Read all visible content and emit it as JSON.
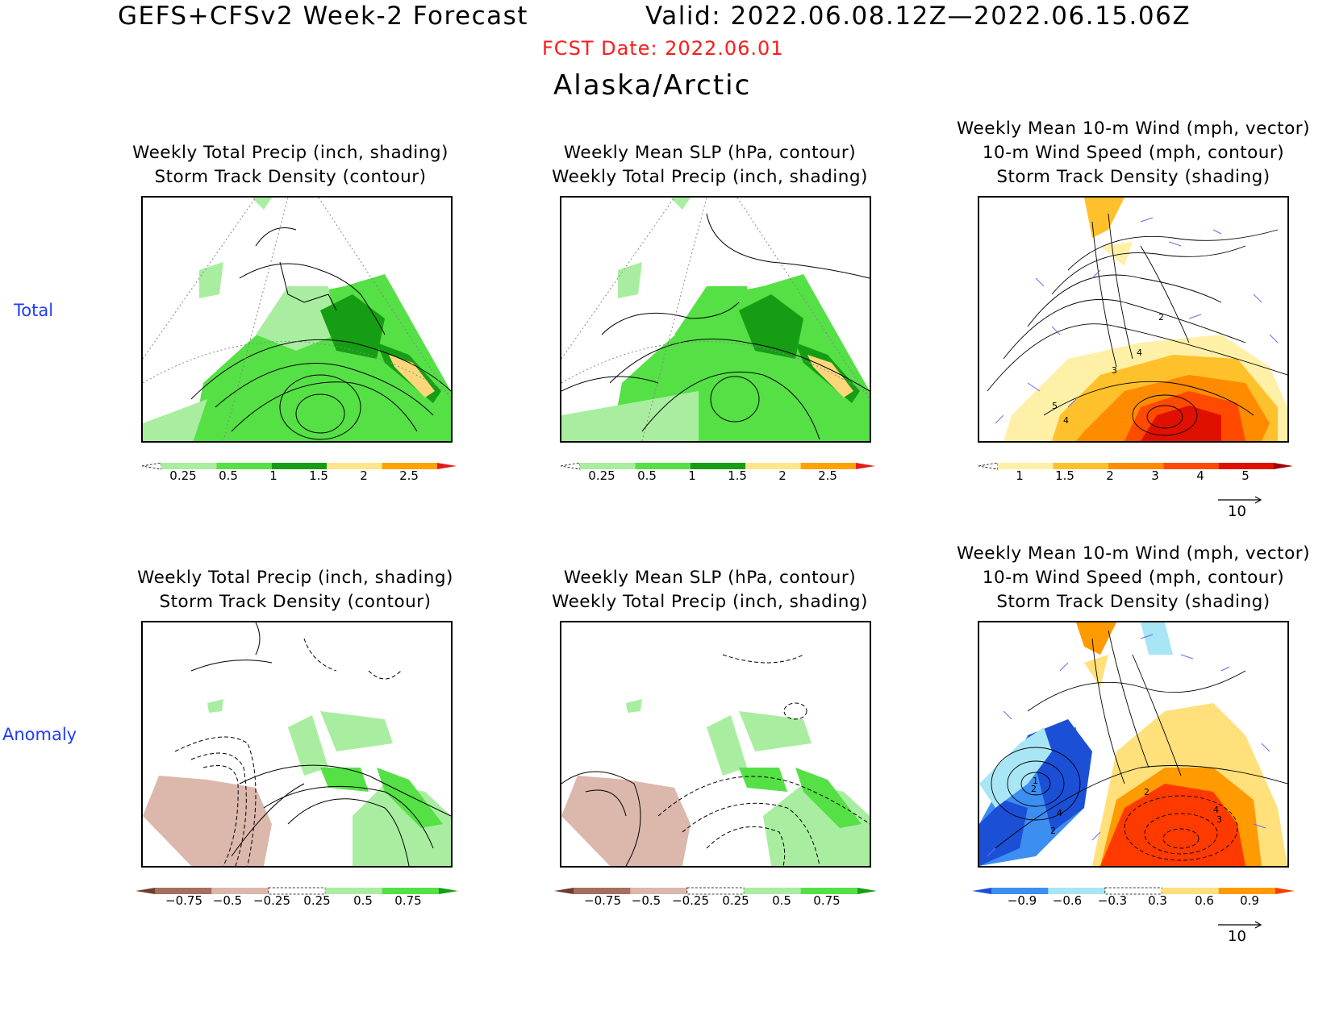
{
  "header": {
    "title": "GEFS+CFSv2 Week-2 Forecast",
    "valid": "Valid: 2022.06.08.12Z—2022.06.15.06Z",
    "fcst_date": "FCST Date: 2022.06.01",
    "region": "Alaska/Arctic"
  },
  "rows": {
    "total": "Total",
    "anomaly": "Anomaly"
  },
  "panels": {
    "p1": [
      "Weekly Total Precip (inch, shading)",
      "Storm Track Density (contour)"
    ],
    "p2": [
      "Weekly Mean SLP (hPa, contour)",
      "Weekly Total Precip (inch, shading)"
    ],
    "p3": [
      "Weekly Mean 10-m Wind (mph, vector)",
      "10-m Wind Speed (mph, contour)",
      "Storm Track Density (shading)"
    ]
  },
  "colorbars": {
    "precip_total": {
      "ticks": [
        "0.25",
        "0.5",
        "1",
        "1.5",
        "2",
        "2.5"
      ],
      "colors": [
        "#ffffff",
        "#a9eea0",
        "#55e046",
        "#159d14",
        "#ffe68a",
        "#ffa200",
        "#e51a1a"
      ]
    },
    "storm_total": {
      "ticks": [
        "1",
        "1.5",
        "2",
        "3",
        "4",
        "5"
      ],
      "colors": [
        "#ffffff",
        "#fff0a8",
        "#ffc12b",
        "#ff8c00",
        "#ff4a00",
        "#e01000",
        "#a00000"
      ]
    },
    "precip_anom": {
      "ticks": [
        "−0.75",
        "−0.5",
        "−0.25",
        "0.25",
        "0.5",
        "0.75"
      ],
      "colors": [
        "#6b3d2a",
        "#a56e5e",
        "#dcb7ac",
        "#ffffff",
        "#a9eea0",
        "#55e046",
        "#159d14"
      ]
    },
    "storm_anom": {
      "ticks": [
        "−0.9",
        "−0.6",
        "−0.3",
        "0.3",
        "0.6",
        "0.9"
      ],
      "colors": [
        "#1b4fd6",
        "#3c8ef0",
        "#a9e6f5",
        "#ffffff",
        "#ffe07a",
        "#ff9a00",
        "#ff3a00"
      ]
    }
  },
  "vector_ref": "10",
  "contour_labels": {
    "total": [
      "2",
      "3",
      "4",
      "5",
      "4"
    ],
    "anomaly": [
      "1",
      "2",
      "4",
      "2",
      "2",
      "4",
      "3"
    ]
  }
}
